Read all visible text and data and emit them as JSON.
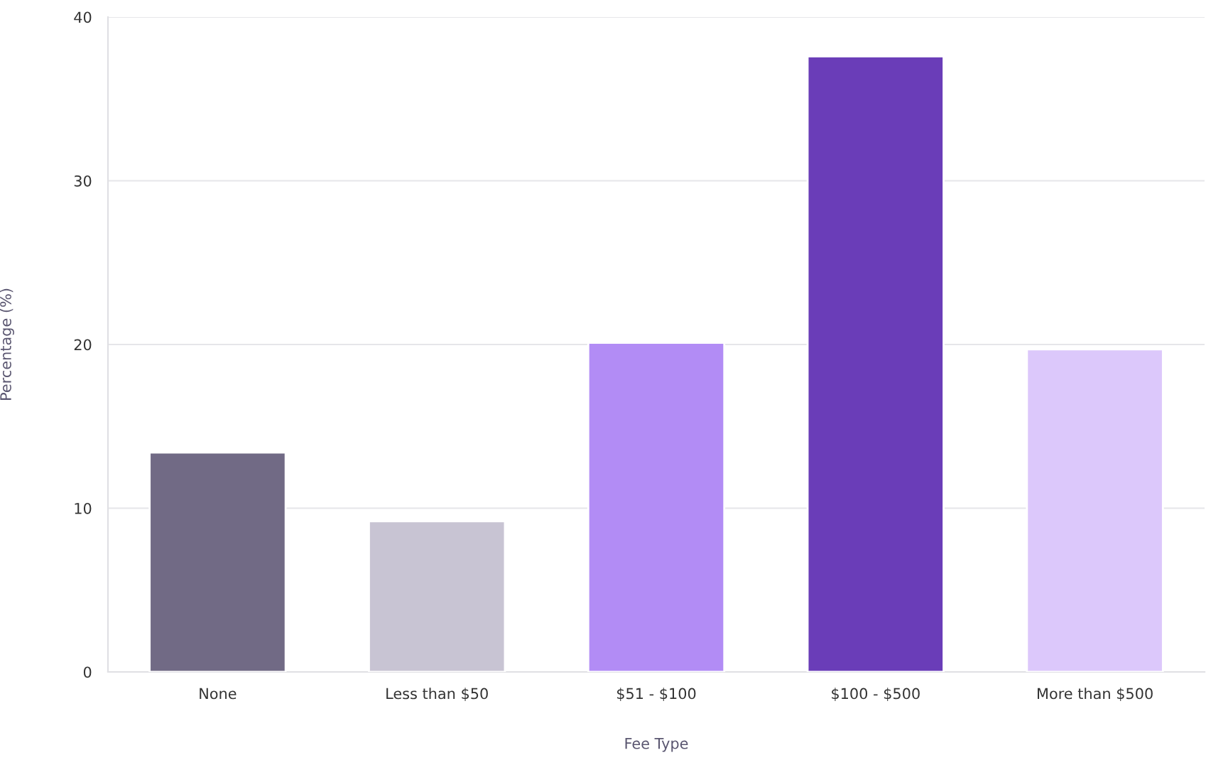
{
  "chart_data": {
    "type": "bar",
    "xlabel": "Fee Type",
    "ylabel": "Percentage (%)",
    "categories": [
      "None",
      "Less than $50",
      "$51 - $100",
      "$100 - $500",
      "More than $500"
    ],
    "values": [
      13.4,
      9.2,
      20.1,
      37.6,
      19.7
    ],
    "colors": [
      "#716a85",
      "#c8c4d3",
      "#b28cf5",
      "#6a3db8",
      "#dcc8fb"
    ],
    "ylim": [
      0,
      40
    ],
    "yticks": [
      0,
      10,
      20,
      30,
      40
    ],
    "grid": "y",
    "legend": false
  }
}
